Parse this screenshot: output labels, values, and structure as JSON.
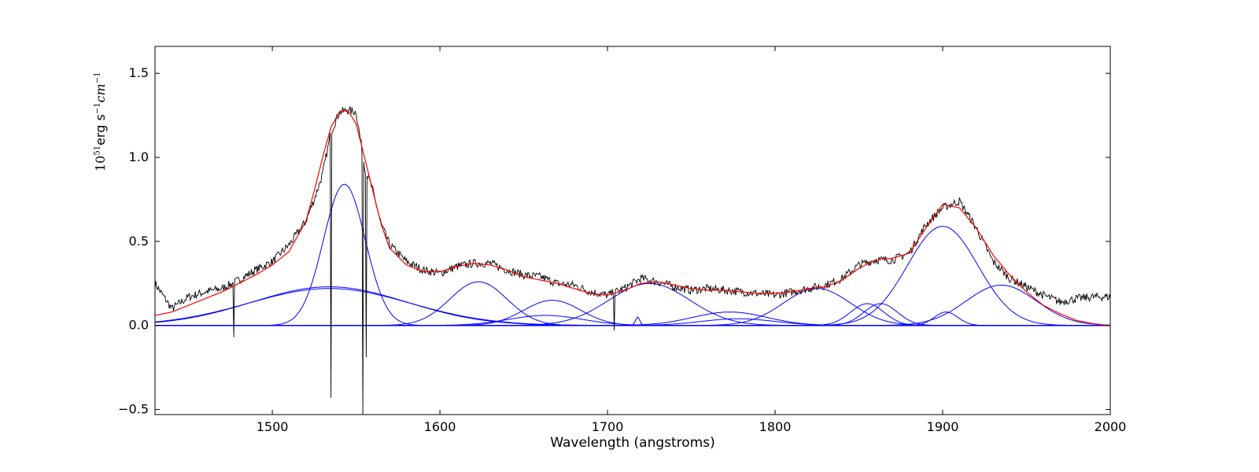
{
  "chart_data": {
    "type": "line",
    "title": "",
    "xlabel": "Wavelength (angstroms)",
    "ylabel": "10^51 erg s^-1 cm^-1",
    "ylabel_parts": {
      "base": "10",
      "exp": "51",
      "unit1": " erg s",
      "exp2": "−1",
      "unit2": " cm",
      "exp3": "−1"
    },
    "xlim": [
      1430,
      2000
    ],
    "ylim": [
      -0.53,
      1.66
    ],
    "xticks": [
      1500,
      1600,
      1700,
      1800,
      1900,
      2000
    ],
    "xtick_labels": [
      "1500",
      "1600",
      "1700",
      "1800",
      "1900",
      "2000"
    ],
    "yticks": [
      -0.5,
      0.0,
      0.5,
      1.0,
      1.5
    ],
    "ytick_labels": [
      "−0.5",
      "0.0",
      "0.5",
      "1.0",
      "1.5"
    ],
    "grid": false,
    "colors": {
      "observed": "#000000",
      "model": "#ff0000",
      "components": "#0000ff"
    },
    "series": [
      {
        "kind": "observed",
        "x": [
          1430,
          1440,
          1450,
          1460,
          1470,
          1480,
          1490,
          1500,
          1510,
          1520,
          1525,
          1530,
          1535,
          1540,
          1545,
          1550,
          1555,
          1560,
          1565,
          1570,
          1580,
          1590,
          1600,
          1610,
          1620,
          1630,
          1640,
          1650,
          1660,
          1670,
          1680,
          1690,
          1700,
          1710,
          1720,
          1730,
          1740,
          1750,
          1760,
          1770,
          1780,
          1790,
          1800,
          1810,
          1820,
          1830,
          1840,
          1850,
          1860,
          1870,
          1880,
          1890,
          1900,
          1910,
          1920,
          1930,
          1940,
          1950,
          1960,
          1970,
          1980,
          1990,
          2000
        ],
        "y": [
          0.25,
          0.1,
          0.17,
          0.2,
          0.22,
          0.27,
          0.33,
          0.38,
          0.48,
          0.62,
          0.75,
          0.9,
          1.15,
          1.27,
          1.28,
          1.27,
          0.95,
          0.8,
          0.6,
          0.48,
          0.38,
          0.33,
          0.31,
          0.35,
          0.37,
          0.37,
          0.33,
          0.3,
          0.29,
          0.25,
          0.24,
          0.2,
          0.18,
          0.22,
          0.28,
          0.26,
          0.23,
          0.21,
          0.22,
          0.21,
          0.2,
          0.19,
          0.18,
          0.2,
          0.22,
          0.24,
          0.28,
          0.36,
          0.39,
          0.39,
          0.43,
          0.6,
          0.7,
          0.74,
          0.58,
          0.38,
          0.28,
          0.23,
          0.18,
          0.14,
          0.16,
          0.17,
          0.17
        ]
      },
      {
        "kind": "model",
        "x": [
          1430,
          1440,
          1450,
          1460,
          1470,
          1480,
          1490,
          1500,
          1510,
          1520,
          1525,
          1530,
          1535,
          1540,
          1545,
          1550,
          1555,
          1560,
          1565,
          1570,
          1580,
          1590,
          1600,
          1610,
          1620,
          1630,
          1640,
          1650,
          1660,
          1670,
          1680,
          1690,
          1700,
          1710,
          1720,
          1730,
          1740,
          1750,
          1760,
          1770,
          1780,
          1790,
          1800,
          1810,
          1820,
          1830,
          1840,
          1850,
          1860,
          1870,
          1880,
          1890,
          1900,
          1910,
          1920,
          1930,
          1940,
          1950,
          1960,
          1970,
          1980,
          1990,
          2000
        ],
        "y": [
          0.06,
          0.08,
          0.12,
          0.16,
          0.2,
          0.25,
          0.3,
          0.36,
          0.44,
          0.62,
          0.8,
          1.0,
          1.18,
          1.27,
          1.28,
          1.2,
          1.0,
          0.8,
          0.6,
          0.46,
          0.36,
          0.32,
          0.32,
          0.35,
          0.37,
          0.36,
          0.33,
          0.29,
          0.27,
          0.25,
          0.22,
          0.19,
          0.18,
          0.21,
          0.25,
          0.26,
          0.24,
          0.22,
          0.21,
          0.21,
          0.2,
          0.19,
          0.19,
          0.2,
          0.22,
          0.23,
          0.27,
          0.34,
          0.39,
          0.4,
          0.43,
          0.58,
          0.72,
          0.7,
          0.58,
          0.42,
          0.3,
          0.2,
          0.12,
          0.07,
          0.03,
          0.01,
          0.0
        ]
      }
    ],
    "components": [
      {
        "name": "",
        "center": 1543,
        "amplitude": 0.84,
        "sigma": 12.5
      },
      {
        "name": "",
        "center": 1534,
        "amplitude": 0.23,
        "sigma": 46
      },
      {
        "name": "",
        "center": 1534,
        "amplitude": 0.22,
        "sigma": 48
      },
      {
        "name": "",
        "center": 1623,
        "amplitude": 0.26,
        "sigma": 17
      },
      {
        "name": "",
        "center": 1667,
        "amplitude": 0.15,
        "sigma": 17
      },
      {
        "name": "",
        "center": 1663,
        "amplitude": 0.06,
        "sigma": 22
      },
      {
        "name": "",
        "center": 1718,
        "amplitude": 0.05,
        "sigma": 1.3
      },
      {
        "name": "",
        "center": 1725,
        "amplitude": 0.25,
        "sigma": 24
      },
      {
        "name": "",
        "center": 1773,
        "amplitude": 0.08,
        "sigma": 22
      },
      {
        "name": "",
        "center": 1778,
        "amplitude": 0.04,
        "sigma": 22
      },
      {
        "name": "",
        "center": 1825,
        "amplitude": 0.22,
        "sigma": 20
      },
      {
        "name": "",
        "center": 1855,
        "amplitude": 0.13,
        "sigma": 10
      },
      {
        "name": "",
        "center": 1863,
        "amplitude": 0.13,
        "sigma": 10
      },
      {
        "name": "",
        "center": 1900,
        "amplitude": 0.59,
        "sigma": 21
      },
      {
        "name": "",
        "center": 1902,
        "amplitude": 0.08,
        "sigma": 7
      },
      {
        "name": "",
        "center": 1935,
        "amplitude": 0.24,
        "sigma": 21
      }
    ],
    "absorption_spikes": [
      {
        "x": 1477,
        "y": -0.07
      },
      {
        "x": 1535,
        "y": -0.43
      },
      {
        "x": 1554,
        "y": -0.53
      },
      {
        "x": 1556,
        "y": -0.19
      },
      {
        "x": 1704,
        "y": -0.03
      }
    ]
  }
}
